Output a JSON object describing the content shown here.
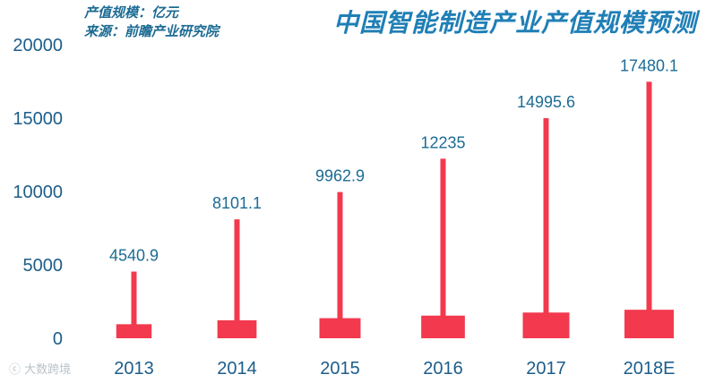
{
  "header": {
    "scale_label": "产值规模：亿元",
    "source_label": "来源：前瞻产业研究院",
    "title": "中国智能制造产业产值规模预测"
  },
  "watermark": "大数跨境",
  "colors": {
    "bar": "#f2394e",
    "axis_text": "#1c5d8a",
    "value_label": "#1c6b93",
    "title": "#1f7fb6"
  },
  "chart_data": {
    "type": "bar",
    "title": "中国智能制造产业产值规模预测",
    "categories": [
      "2013",
      "2014",
      "2015",
      "2016",
      "2017",
      "2018E"
    ],
    "values": [
      4540.9,
      8101.1,
      9962.9,
      12235,
      14995.6,
      17480.1
    ],
    "value_labels": [
      "4540.9",
      "8101.1",
      "9962.9",
      "12235",
      "14995.6",
      "17480.1"
    ],
    "ylim": [
      0,
      20000
    ],
    "yticks": [
      0,
      5000,
      10000,
      15000,
      20000
    ],
    "grid": false,
    "legend": "none"
  }
}
